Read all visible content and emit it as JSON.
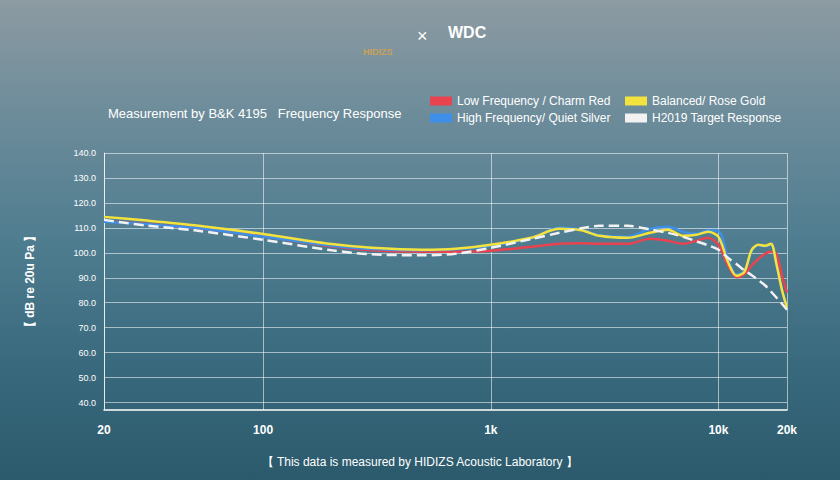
{
  "chart_data": {
    "type": "line",
    "title": "Measurement by B&K 4195   Frequency Response",
    "ylabel": "【 dB re 20u Pa 】",
    "annotations": [
      "HIDIZS",
      "×",
      "WDC",
      "【 This data is measured by HIDIZS Acoustic Laboratory 】"
    ],
    "log": "x",
    "grid": true,
    "legend": "top-right",
    "xlim": [
      20,
      20000
    ],
    "xticks": [
      20,
      100,
      {
        "value": 1000,
        "label": "1k"
      },
      {
        "value": 10000,
        "label": "10k"
      },
      {
        "value": 20000,
        "label": "20k"
      }
    ],
    "ylim": [
      37,
      140
    ],
    "yticks": [
      {
        "value": 40,
        "label": "40.0"
      },
      {
        "value": 50,
        "label": "50.0"
      },
      {
        "value": 60,
        "label": "60.0"
      },
      {
        "value": 70,
        "label": "70.0"
      },
      {
        "value": 80,
        "label": "80.0"
      },
      {
        "value": 90,
        "label": "90.0"
      },
      {
        "value": 100,
        "label": "100.0"
      },
      {
        "value": 110,
        "label": "110.0"
      },
      {
        "value": 120,
        "label": "120.0"
      },
      {
        "value": 130,
        "label": "130.0"
      },
      {
        "value": 140,
        "label": "140.0"
      }
    ],
    "x": [
      20,
      30,
      50,
      100,
      200,
      300,
      500,
      700,
      1000,
      1500,
      2000,
      2500,
      3000,
      4000,
      5000,
      6000,
      7000,
      8000,
      9000,
      10000,
      11000,
      12000,
      13000,
      14000,
      15000,
      16000,
      17000,
      18000,
      19000,
      20000
    ],
    "series": [
      {
        "name": "Low Frequency / Charm Red",
        "color": "#e8434f",
        "line_style": "solid",
        "values": [
          112.6,
          111.6,
          110,
          106.6,
          102.6,
          101,
          100.4,
          100.4,
          100.8,
          102.4,
          103.6,
          103.8,
          103.6,
          103.6,
          105.6,
          104.8,
          103.6,
          104.8,
          106,
          103.2,
          95,
          90.2,
          91.4,
          95,
          97.6,
          99.6,
          100.4,
          99.4,
          91,
          84
        ]
      },
      {
        "name": "High Frequency/ Quiet Silver",
        "color": "#3d8fe8",
        "line_style": "solid",
        "values": [
          112.4,
          111.5,
          110,
          106.5,
          102.8,
          101.5,
          101,
          101.4,
          102.8,
          105.8,
          110,
          109.2,
          107,
          106.4,
          109.6,
          110.4,
          108.4,
          107.6,
          109,
          108.8,
          98,
          91.2,
          92.6,
          101,
          103,
          102.6,
          103.4,
          95,
          85,
          78
        ]
      },
      {
        "name": "Balanced/ Rose Gold",
        "color": "#f3e33c",
        "line_style": "solid",
        "values": [
          114.4,
          113,
          111,
          107.5,
          103.5,
          102,
          101.2,
          101.6,
          103.2,
          106,
          109.6,
          109,
          106.8,
          106,
          108,
          109.2,
          106.8,
          107.2,
          108.4,
          106.4,
          96.4,
          90.8,
          92.4,
          101.2,
          103.2,
          102.8,
          103.6,
          95.2,
          85.2,
          78
        ]
      },
      {
        "name": "H2019 Target Response",
        "color": "#f2f2f2",
        "line_style": "dashed",
        "values": [
          113.2,
          111,
          109,
          105.2,
          101,
          99.4,
          99,
          99.6,
          102,
          105.5,
          108,
          109.8,
          110.8,
          110.8,
          109.4,
          108,
          106.4,
          104.6,
          103,
          101.2,
          98,
          95.5,
          93,
          91,
          89,
          87,
          84.5,
          82,
          79.6,
          77.2
        ]
      }
    ]
  }
}
